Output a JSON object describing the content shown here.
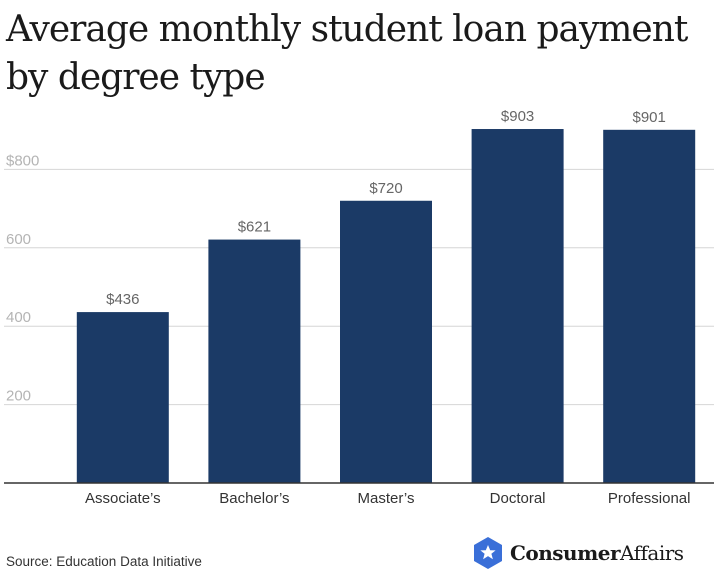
{
  "title": "Average monthly student loan payment by degree type",
  "source": "Source: Education Data Initiative",
  "brand": {
    "name_bold": "Consumer",
    "name_regular": "Affairs",
    "icon": "star-badge-icon",
    "color": "#3a6fd8"
  },
  "chart_data": {
    "type": "bar",
    "categories": [
      "Associate’s",
      "Bachelor’s",
      "Master’s",
      "Doctoral",
      "Professional"
    ],
    "values": [
      436,
      621,
      720,
      903,
      901
    ],
    "value_labels": [
      "$436",
      "$621",
      "$720",
      "$903",
      "$901"
    ],
    "yticks": [
      200,
      400,
      600,
      800
    ],
    "ytick_labels": [
      "200",
      "400",
      "600",
      "$800"
    ],
    "ylim": [
      0,
      1000
    ],
    "grid": true,
    "bar_color": "#1b3a66",
    "title": "Average monthly student loan payment by degree type",
    "xlabel": "",
    "ylabel": ""
  }
}
